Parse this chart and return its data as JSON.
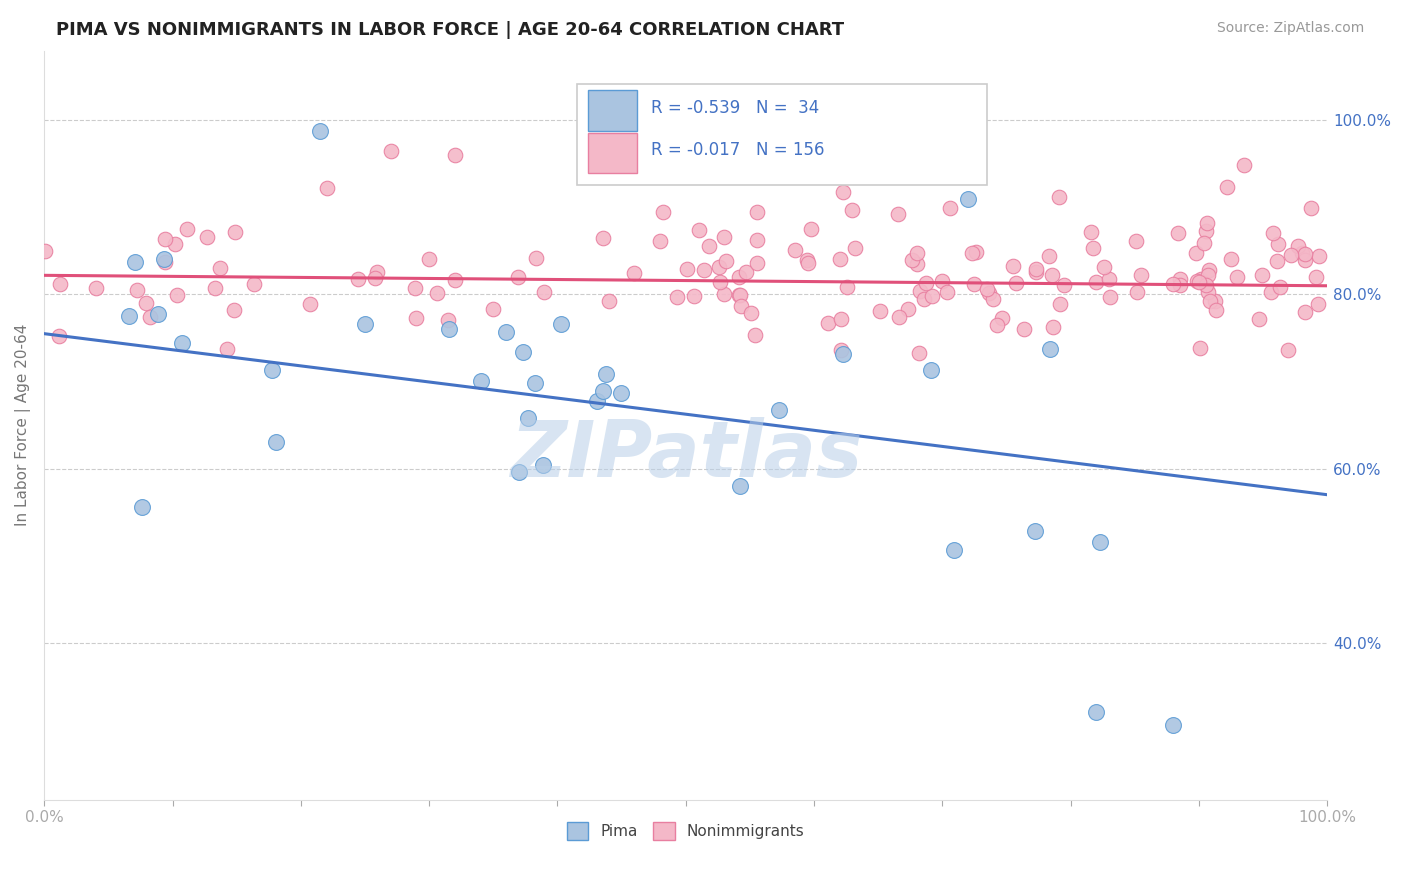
{
  "title": "PIMA VS NONIMMIGRANTS IN LABOR FORCE | AGE 20-64 CORRELATION CHART",
  "source": "Source: ZipAtlas.com",
  "ylabel": "In Labor Force | Age 20-64",
  "xlim": [
    0.0,
    1.0
  ],
  "ylim": [
    0.22,
    1.08
  ],
  "y_ticks": [
    0.4,
    0.6,
    0.8,
    1.0
  ],
  "y_tick_labels": [
    "40.0%",
    "60.0%",
    "80.0%",
    "100.0%"
  ],
  "x_tick_labels": [
    "0.0%",
    "",
    "",
    "",
    "",
    "",
    "",
    "",
    "",
    "",
    "100.0%"
  ],
  "pima_color": "#aac4e0",
  "pima_edge_color": "#5b9bd5",
  "nonimm_color": "#f4b8c8",
  "nonimm_edge_color": "#e87fa0",
  "blue_line_color": "#4472c4",
  "pink_line_color": "#e0507a",
  "watermark": "ZIPatlas",
  "watermark_color": "#b8cfe8",
  "legend_text_pima": "R = -0.539   N =  34",
  "legend_text_nonimm": "R = -0.017   N = 156",
  "grid_color": "#cccccc",
  "background_color": "#ffffff",
  "pima_slope": -0.185,
  "pima_intercept": 0.755,
  "nonimm_slope": -0.012,
  "nonimm_intercept": 0.822
}
